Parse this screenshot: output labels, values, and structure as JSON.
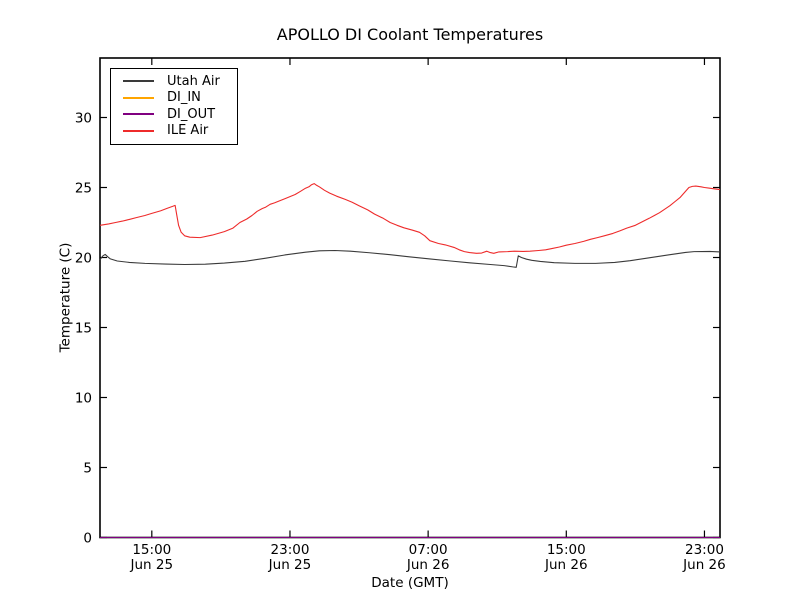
{
  "figure": {
    "title": "APOLLO DI Coolant Temperatures",
    "xlabel": "Date (GMT)",
    "ylabel": "Temperature (C)"
  },
  "chart_data": {
    "type": "line",
    "title": "APOLLO DI Coolant Temperatures",
    "xlabel": "Date (GMT)",
    "ylabel": "Temperature (C)",
    "x_unit": "hours since Jun 25 12:00 GMT",
    "xlim": [
      0,
      35.9
    ],
    "ylim": [
      0,
      34.25
    ],
    "grid": false,
    "legend_position": "upper-left",
    "axis_color": "#000000",
    "yticks": [
      0,
      5,
      10,
      15,
      20,
      25,
      30
    ],
    "xticks": [
      {
        "t": 3,
        "time": "15:00",
        "date": "Jun 25"
      },
      {
        "t": 11,
        "time": "23:00",
        "date": "Jun 25"
      },
      {
        "t": 19,
        "time": "07:00",
        "date": "Jun 26"
      },
      {
        "t": 27,
        "time": "15:00",
        "date": "Jun 26"
      },
      {
        "t": 35,
        "time": "23:00",
        "date": "Jun 26"
      }
    ],
    "series": [
      {
        "name": "Utah Air",
        "color": "#3a3a3a",
        "points": [
          [
            0,
            19.85
          ],
          [
            0.17,
            20.12
          ],
          [
            0.3,
            20.22
          ],
          [
            0.45,
            20.05
          ],
          [
            0.6,
            19.9
          ],
          [
            1.0,
            19.75
          ],
          [
            1.7,
            19.65
          ],
          [
            2.6,
            19.58
          ],
          [
            3.8,
            19.53
          ],
          [
            4.9,
            19.5
          ],
          [
            6.1,
            19.52
          ],
          [
            7.2,
            19.6
          ],
          [
            8.4,
            19.73
          ],
          [
            9.6,
            19.95
          ],
          [
            10.7,
            20.18
          ],
          [
            11.9,
            20.38
          ],
          [
            12.7,
            20.48
          ],
          [
            13.6,
            20.5
          ],
          [
            14.5,
            20.45
          ],
          [
            15.6,
            20.34
          ],
          [
            16.8,
            20.2
          ],
          [
            17.9,
            20.05
          ],
          [
            19.1,
            19.9
          ],
          [
            20.3,
            19.75
          ],
          [
            21.4,
            19.62
          ],
          [
            22.6,
            19.5
          ],
          [
            23.4,
            19.42
          ],
          [
            23.9,
            19.33
          ],
          [
            24.1,
            19.3
          ],
          [
            24.22,
            20.12
          ],
          [
            24.4,
            20.0
          ],
          [
            24.7,
            19.88
          ],
          [
            25.0,
            19.8
          ],
          [
            25.5,
            19.72
          ],
          [
            26.3,
            19.63
          ],
          [
            27.5,
            19.58
          ],
          [
            28.7,
            19.58
          ],
          [
            29.8,
            19.65
          ],
          [
            30.7,
            19.77
          ],
          [
            31.8,
            19.98
          ],
          [
            32.9,
            20.18
          ],
          [
            33.9,
            20.36
          ],
          [
            34.4,
            20.42
          ],
          [
            35.3,
            20.43
          ],
          [
            35.9,
            20.4
          ]
        ]
      },
      {
        "name": "DI_IN",
        "color": "#ffa500",
        "points": [
          [
            0,
            0
          ],
          [
            35.9,
            0
          ]
        ]
      },
      {
        "name": "DI_OUT",
        "color": "#800080",
        "points": [
          [
            0,
            0
          ],
          [
            35.9,
            0
          ]
        ]
      },
      {
        "name": "ILE Air",
        "color": "#ee2b2b",
        "points": [
          [
            0,
            22.3
          ],
          [
            0.5,
            22.4
          ],
          [
            0.9,
            22.5
          ],
          [
            1.3,
            22.6
          ],
          [
            1.7,
            22.72
          ],
          [
            2.1,
            22.85
          ],
          [
            2.6,
            23.0
          ],
          [
            3.0,
            23.15
          ],
          [
            3.5,
            23.33
          ],
          [
            3.9,
            23.52
          ],
          [
            4.2,
            23.65
          ],
          [
            4.35,
            23.72
          ],
          [
            4.45,
            23.0
          ],
          [
            4.55,
            22.3
          ],
          [
            4.7,
            21.8
          ],
          [
            4.9,
            21.55
          ],
          [
            5.2,
            21.45
          ],
          [
            5.8,
            21.42
          ],
          [
            6.5,
            21.6
          ],
          [
            7.2,
            21.85
          ],
          [
            7.7,
            22.1
          ],
          [
            8.1,
            22.5
          ],
          [
            8.5,
            22.75
          ],
          [
            8.8,
            23.0
          ],
          [
            9.1,
            23.3
          ],
          [
            9.4,
            23.5
          ],
          [
            9.6,
            23.6
          ],
          [
            9.85,
            23.8
          ],
          [
            10.1,
            23.9
          ],
          [
            10.3,
            24.0
          ],
          [
            10.7,
            24.2
          ],
          [
            11.0,
            24.35
          ],
          [
            11.3,
            24.5
          ],
          [
            11.6,
            24.72
          ],
          [
            11.9,
            24.95
          ],
          [
            12.1,
            25.05
          ],
          [
            12.25,
            25.2
          ],
          [
            12.4,
            25.28
          ],
          [
            12.55,
            25.15
          ],
          [
            12.7,
            25.05
          ],
          [
            13.0,
            24.8
          ],
          [
            13.3,
            24.6
          ],
          [
            13.7,
            24.38
          ],
          [
            14.2,
            24.15
          ],
          [
            14.6,
            23.95
          ],
          [
            15.0,
            23.7
          ],
          [
            15.5,
            23.4
          ],
          [
            15.9,
            23.1
          ],
          [
            16.4,
            22.8
          ],
          [
            16.8,
            22.5
          ],
          [
            17.2,
            22.3
          ],
          [
            17.6,
            22.12
          ],
          [
            18.1,
            21.95
          ],
          [
            18.5,
            21.8
          ],
          [
            18.8,
            21.55
          ],
          [
            19.1,
            21.2
          ],
          [
            19.6,
            21.0
          ],
          [
            20.0,
            20.9
          ],
          [
            20.5,
            20.72
          ],
          [
            20.8,
            20.55
          ],
          [
            21.1,
            20.42
          ],
          [
            21.4,
            20.35
          ],
          [
            21.8,
            20.3
          ],
          [
            22.1,
            20.32
          ],
          [
            22.4,
            20.45
          ],
          [
            22.6,
            20.35
          ],
          [
            22.8,
            20.3
          ],
          [
            23.1,
            20.4
          ],
          [
            23.6,
            20.42
          ],
          [
            24.0,
            20.45
          ],
          [
            24.5,
            20.43
          ],
          [
            24.9,
            20.45
          ],
          [
            25.4,
            20.5
          ],
          [
            25.8,
            20.55
          ],
          [
            26.2,
            20.65
          ],
          [
            26.6,
            20.75
          ],
          [
            27.0,
            20.88
          ],
          [
            27.5,
            21.0
          ],
          [
            28.0,
            21.15
          ],
          [
            28.4,
            21.3
          ],
          [
            28.8,
            21.42
          ],
          [
            29.2,
            21.55
          ],
          [
            29.7,
            21.72
          ],
          [
            30.1,
            21.9
          ],
          [
            30.5,
            22.1
          ],
          [
            31.0,
            22.3
          ],
          [
            31.4,
            22.55
          ],
          [
            31.8,
            22.8
          ],
          [
            32.1,
            23.0
          ],
          [
            32.4,
            23.2
          ],
          [
            32.7,
            23.45
          ],
          [
            33.0,
            23.7
          ],
          [
            33.3,
            24.0
          ],
          [
            33.6,
            24.3
          ],
          [
            33.85,
            24.65
          ],
          [
            34.1,
            25.0
          ],
          [
            34.3,
            25.08
          ],
          [
            34.5,
            25.1
          ],
          [
            34.8,
            25.05
          ],
          [
            35.0,
            25.0
          ],
          [
            35.3,
            24.95
          ],
          [
            35.6,
            24.9
          ],
          [
            35.9,
            24.85
          ]
        ]
      }
    ]
  }
}
